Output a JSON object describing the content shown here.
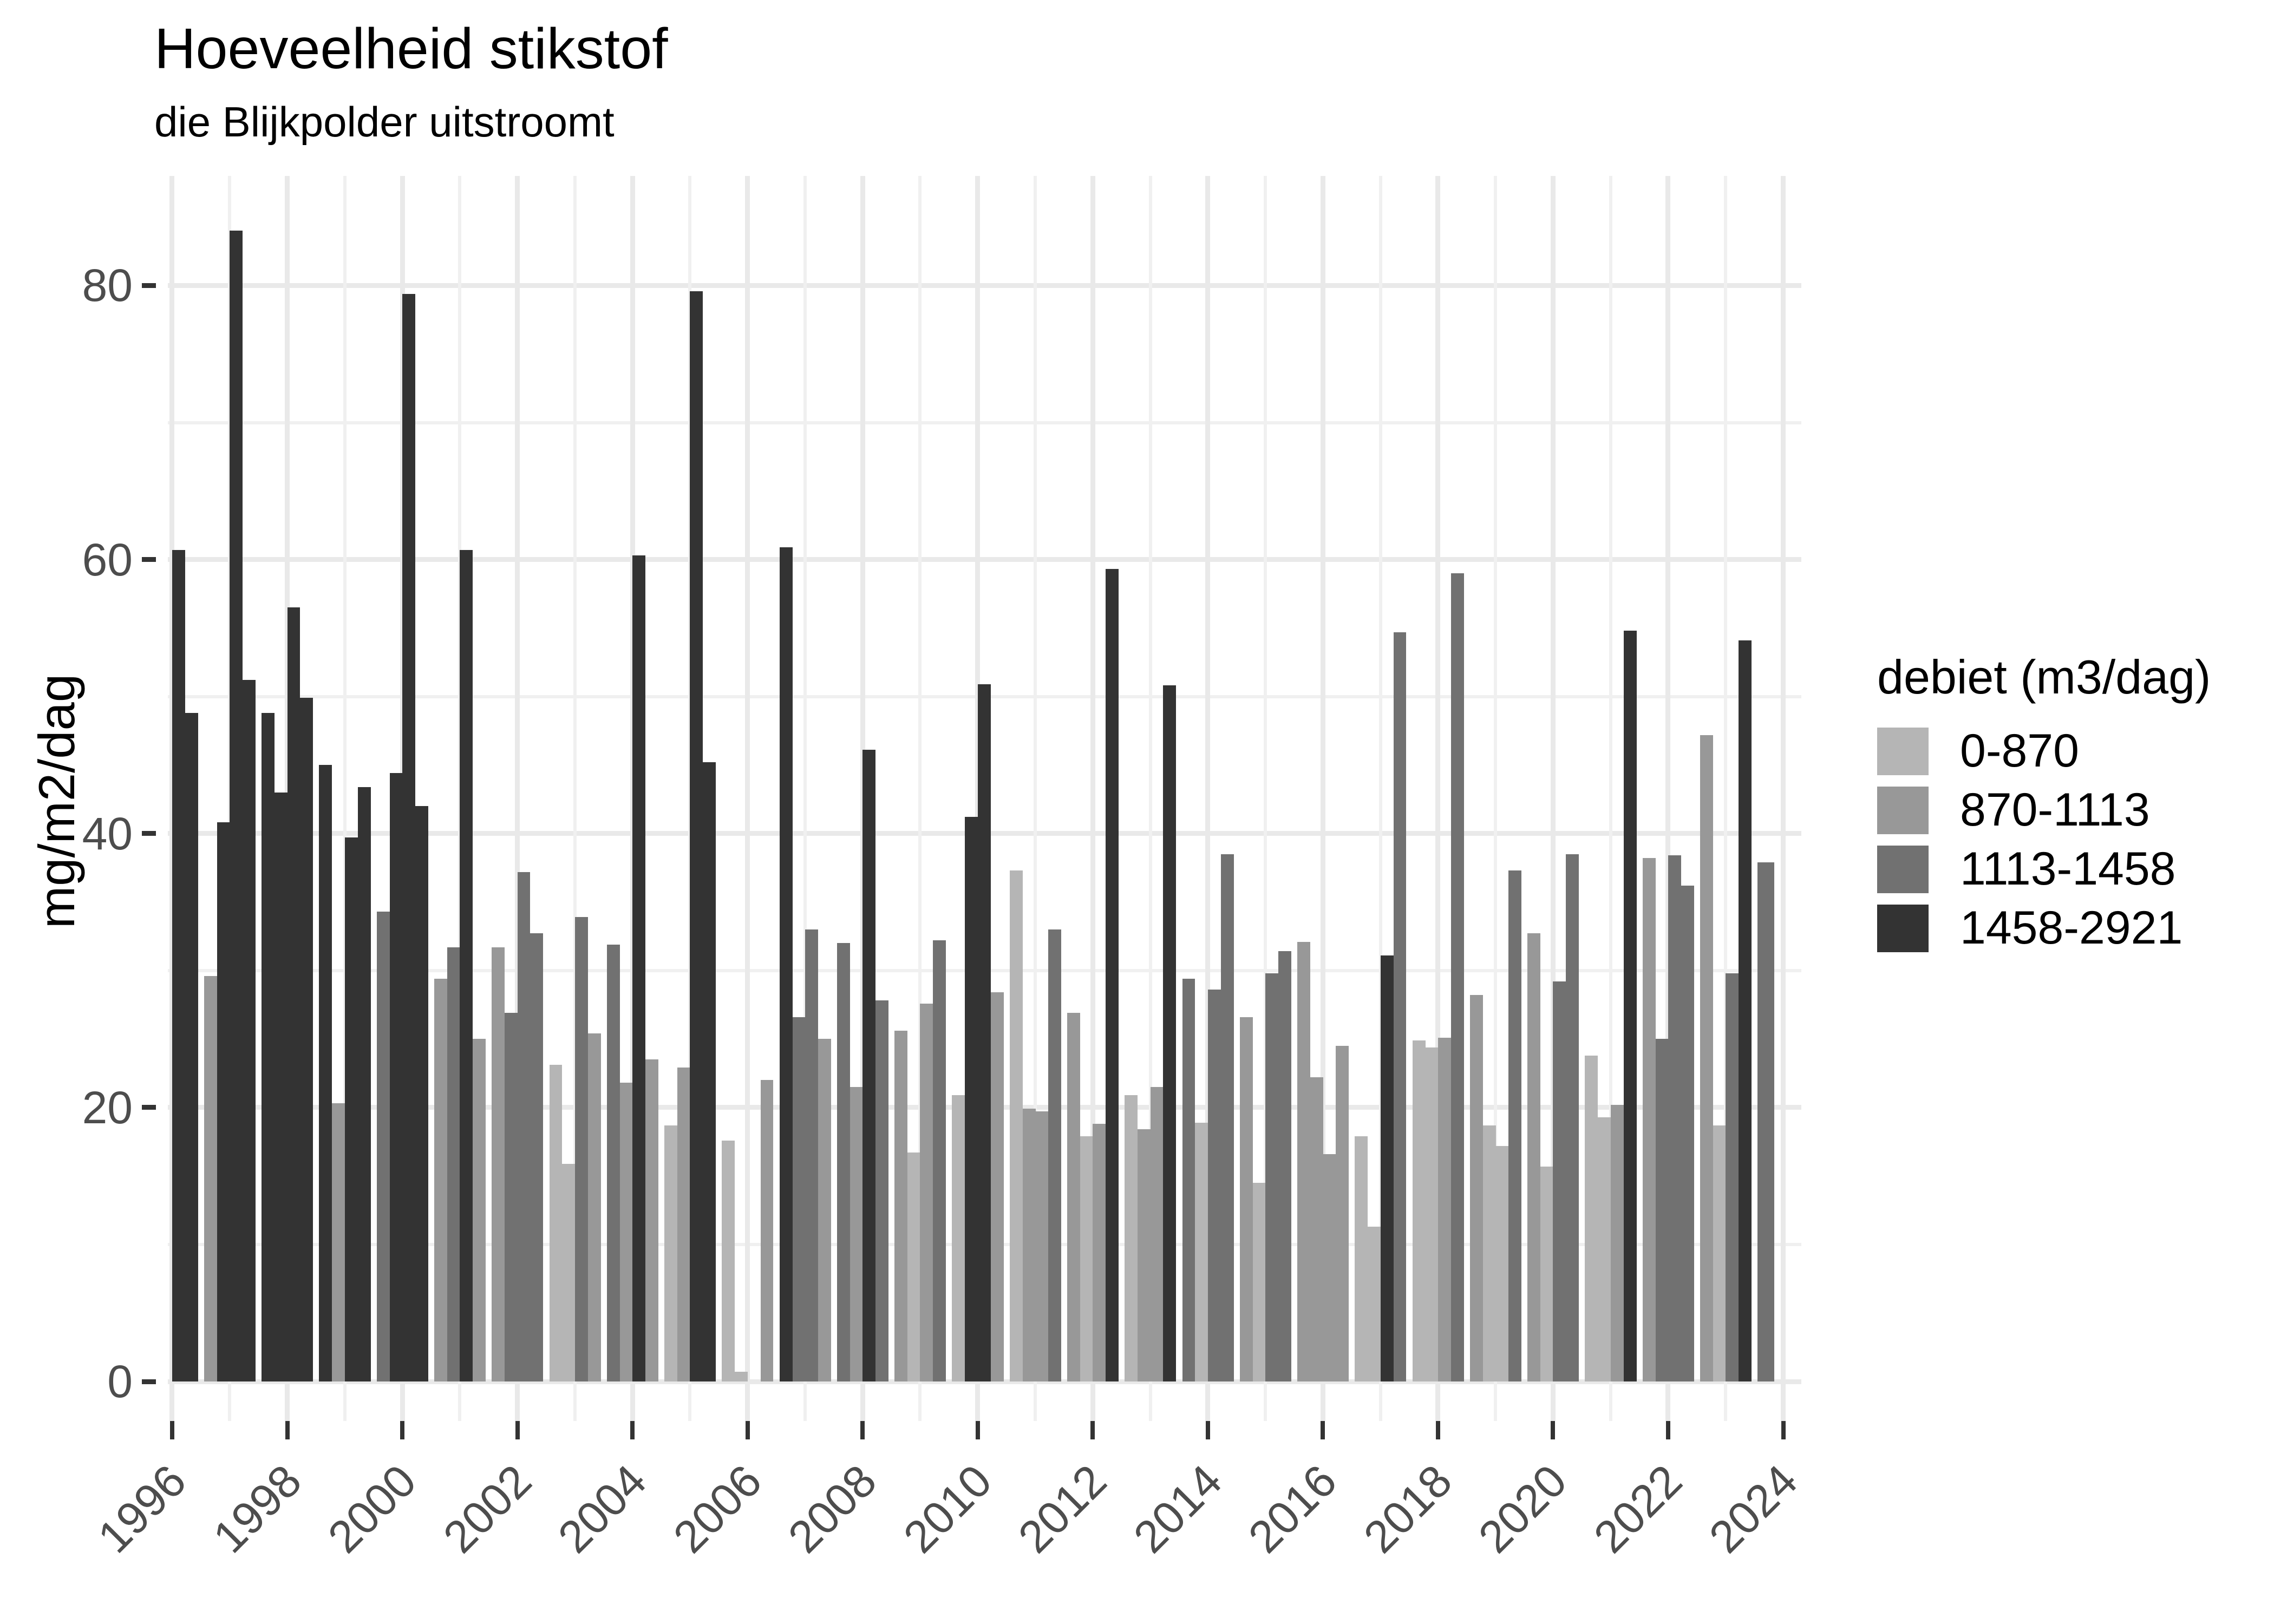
{
  "chart_data": {
    "type": "bar",
    "title": "Hoeveelheid stikstof",
    "subtitle": "die Blijkpolder uitstroomt",
    "ylabel": "mg/m2/dag",
    "xlabel": "",
    "legend_title": "debiet (m3/dag)",
    "legend_position": "right",
    "grid": "on",
    "ylim": [
      0,
      88
    ],
    "xlim": [
      1995.925,
      2024.315
    ],
    "y_major_ticks": [
      0,
      20,
      40,
      60,
      80
    ],
    "y_minor_gridlines": [
      10,
      30,
      50,
      70
    ],
    "x_gridline_years": [
      1996,
      1997,
      1998,
      1999,
      2000,
      2001,
      2002,
      2003,
      2004,
      2005,
      2006,
      2007,
      2008,
      2009,
      2010,
      2011,
      2012,
      2013,
      2014,
      2015,
      2016,
      2017,
      2018,
      2019,
      2020,
      2021,
      2022,
      2023,
      2024
    ],
    "x_labeled_ticks": [
      1996,
      1998,
      2000,
      2002,
      2004,
      2006,
      2008,
      2010,
      2012,
      2014,
      2016,
      2018,
      2020,
      2022,
      2024
    ],
    "bar_width_years": 0.225,
    "categories": [
      {
        "label": "0-870",
        "color": "#b5b5b5"
      },
      {
        "label": "870-1113",
        "color": "#989898"
      },
      {
        "label": "1113-1458",
        "color": "#717171"
      },
      {
        "label": "1458-2921",
        "color": "#333333"
      }
    ],
    "bars_note": "each bar = [x position in decimal years, value mg/m2/dag, category index, optional width multiplier]",
    "bars": [
      [
        1996.0,
        60.7,
        3
      ],
      [
        1996.225,
        48.8,
        3
      ],
      [
        1996.555,
        29.6,
        1
      ],
      [
        1996.78,
        40.8,
        3
      ],
      [
        1997.0,
        84.0,
        3
      ],
      [
        1997.225,
        51.2,
        3
      ],
      [
        1997.555,
        48.8,
        3
      ],
      [
        1997.78,
        43.0,
        3
      ],
      [
        1998.0,
        56.5,
        3
      ],
      [
        1998.225,
        49.9,
        3
      ],
      [
        1998.555,
        45.0,
        3
      ],
      [
        1998.78,
        20.3,
        1
      ],
      [
        1999.0,
        39.7,
        3
      ],
      [
        1999.225,
        43.4,
        3
      ],
      [
        1999.555,
        34.3,
        2
      ],
      [
        1999.78,
        44.4,
        3
      ],
      [
        2000.0,
        79.4,
        3
      ],
      [
        2000.225,
        42.0,
        3
      ],
      [
        2000.555,
        29.4,
        1
      ],
      [
        2000.78,
        31.7,
        2
      ],
      [
        2001.0,
        60.7,
        3
      ],
      [
        2001.225,
        25.0,
        1
      ],
      [
        2001.555,
        31.7,
        1
      ],
      [
        2001.78,
        26.9,
        2
      ],
      [
        2002.0,
        37.2,
        2
      ],
      [
        2002.225,
        32.7,
        2
      ],
      [
        2002.555,
        23.1,
        0
      ],
      [
        2002.78,
        15.9,
        0
      ],
      [
        2003.0,
        33.9,
        2
      ],
      [
        2003.225,
        25.4,
        1
      ],
      [
        2003.555,
        31.9,
        2
      ],
      [
        2003.78,
        21.8,
        1
      ],
      [
        2004.0,
        60.3,
        3
      ],
      [
        2004.225,
        23.5,
        1
      ],
      [
        2004.555,
        18.7,
        0
      ],
      [
        2004.78,
        22.9,
        1
      ],
      [
        2005.0,
        79.6,
        3
      ],
      [
        2005.225,
        45.2,
        3
      ],
      [
        2005.555,
        17.6,
        0
      ],
      [
        2005.78,
        0.7,
        0
      ],
      [
        2006.225,
        22.0,
        1
      ],
      [
        2006.555,
        60.9,
        3
      ],
      [
        2006.78,
        26.6,
        2
      ],
      [
        2007.0,
        33.0,
        2
      ],
      [
        2007.225,
        25.0,
        1
      ],
      [
        2007.555,
        32.0,
        2
      ],
      [
        2007.78,
        21.5,
        1
      ],
      [
        2008.0,
        46.1,
        3
      ],
      [
        2008.225,
        27.8,
        2
      ],
      [
        2008.555,
        25.6,
        1
      ],
      [
        2008.78,
        16.7,
        0
      ],
      [
        2009.0,
        27.6,
        1
      ],
      [
        2009.225,
        32.2,
        2
      ],
      [
        2009.555,
        20.9,
        0
      ],
      [
        2009.78,
        41.2,
        3
      ],
      [
        2010.0,
        50.9,
        3
      ],
      [
        2010.225,
        28.4,
        1
      ],
      [
        2010.555,
        37.3,
        0
      ],
      [
        2010.78,
        19.9,
        1
      ],
      [
        2011.0,
        19.7,
        1
      ],
      [
        2011.225,
        33.0,
        2
      ],
      [
        2011.555,
        26.9,
        1
      ],
      [
        2011.78,
        17.9,
        0
      ],
      [
        2012.0,
        18.8,
        1
      ],
      [
        2012.225,
        59.3,
        3
      ],
      [
        2012.555,
        20.9,
        0
      ],
      [
        2012.78,
        18.4,
        1
      ],
      [
        2013.0,
        21.5,
        1
      ],
      [
        2013.225,
        50.8,
        3
      ],
      [
        2013.555,
        29.4,
        2
      ],
      [
        2013.78,
        18.9,
        0
      ],
      [
        2014.0,
        28.6,
        2
      ],
      [
        2014.225,
        38.5,
        2
      ],
      [
        2014.555,
        26.6,
        1
      ],
      [
        2014.78,
        14.5,
        0
      ],
      [
        2015.0,
        29.8,
        2
      ],
      [
        2015.225,
        31.4,
        2
      ],
      [
        2015.555,
        32.1,
        1
      ],
      [
        2015.78,
        22.2,
        1
      ],
      [
        2016.0,
        16.6,
        1
      ],
      [
        2016.225,
        24.5,
        1
      ],
      [
        2016.555,
        17.9,
        0
      ],
      [
        2016.78,
        11.3,
        0
      ],
      [
        2017.0,
        31.1,
        3
      ],
      [
        2017.225,
        54.7,
        2
      ],
      [
        2017.555,
        24.9,
        0
      ],
      [
        2017.78,
        24.4,
        0
      ],
      [
        2018.0,
        25.1,
        1
      ],
      [
        2018.225,
        59.0,
        2
      ],
      [
        2018.555,
        28.2,
        1
      ],
      [
        2018.78,
        18.7,
        0
      ],
      [
        2019.0,
        17.2,
        0
      ],
      [
        2019.225,
        37.3,
        2
      ],
      [
        2019.555,
        32.7,
        1
      ],
      [
        2019.78,
        15.7,
        0
      ],
      [
        2020.0,
        29.2,
        2
      ],
      [
        2020.225,
        38.5,
        2
      ],
      [
        2020.555,
        23.8,
        0
      ],
      [
        2020.78,
        19.3,
        0
      ],
      [
        2021.0,
        20.2,
        1
      ],
      [
        2021.225,
        54.8,
        3
      ],
      [
        2021.555,
        38.2,
        1
      ],
      [
        2021.78,
        25.0,
        2
      ],
      [
        2022.0,
        38.4,
        2
      ],
      [
        2022.225,
        36.2,
        2
      ],
      [
        2022.555,
        47.2,
        1
      ],
      [
        2022.78,
        18.7,
        0
      ],
      [
        2023.0,
        29.8,
        2
      ],
      [
        2023.225,
        54.1,
        3
      ],
      [
        2023.555,
        37.9,
        2,
        1.3
      ]
    ]
  }
}
